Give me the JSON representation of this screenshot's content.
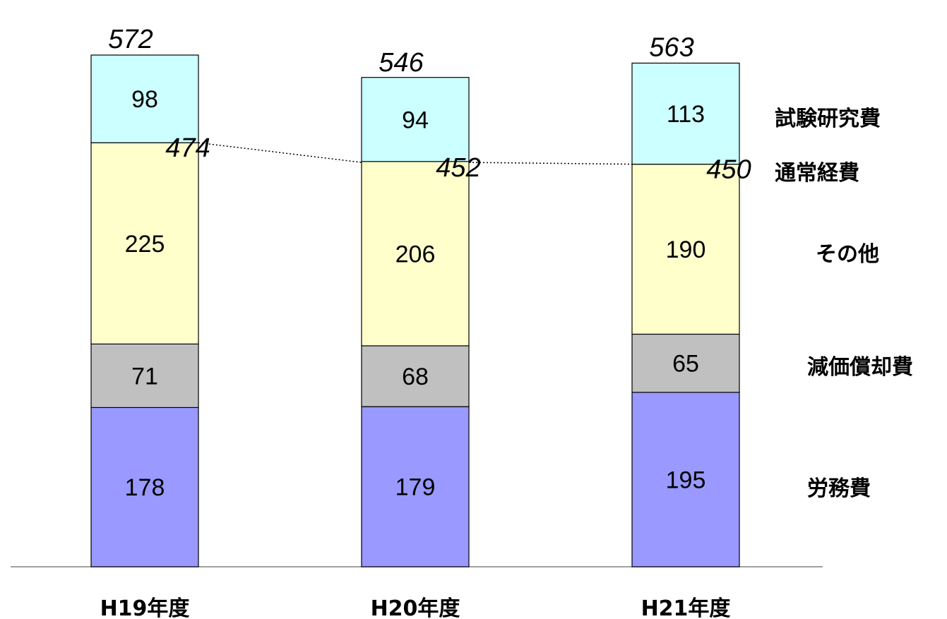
{
  "chart_data": {
    "type": "bar",
    "stacked": true,
    "categories": [
      "H19年度",
      "H20年度",
      "H21年度"
    ],
    "series": [
      {
        "name": "労務費",
        "values": [
          178,
          179,
          195
        ],
        "color": "#9999ff"
      },
      {
        "name": "減価償却費",
        "values": [
          71,
          68,
          65
        ],
        "color": "#c0c0c0"
      },
      {
        "name": "その他",
        "values": [
          225,
          206,
          190
        ],
        "color": "#ffffcc"
      },
      {
        "name": "試験研究費",
        "values": [
          98,
          94,
          113
        ],
        "color": "#ccffff"
      }
    ],
    "totals": [
      572,
      546,
      563
    ],
    "subtotal": {
      "name": "通常経費",
      "values": [
        474,
        452,
        450
      ]
    },
    "ylim": [
      0,
      600
    ],
    "grid": false
  }
}
